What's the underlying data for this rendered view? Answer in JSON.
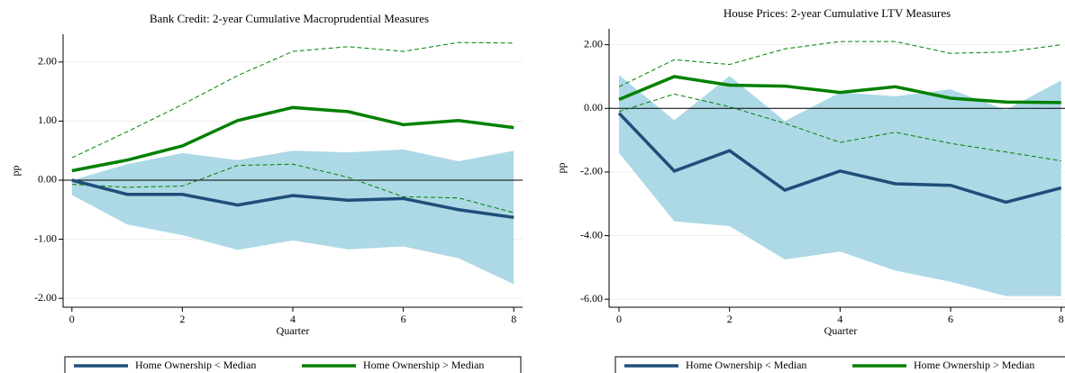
{
  "chart_data": [
    {
      "type": "line",
      "title": "Bank Credit: 2-year Cumulative Macroprudential Measures",
      "xlabel": "Quarter",
      "ylabel": "pp",
      "x": [
        0,
        1,
        2,
        3,
        4,
        5,
        6,
        7,
        8
      ],
      "xlim": [
        -0.16,
        8.16
      ],
      "ylim": [
        -2.15,
        2.47
      ],
      "xticks": [
        0,
        2,
        4,
        6,
        8
      ],
      "yticks": [
        {
          "value": -2,
          "label": "-2.00"
        },
        {
          "value": -1,
          "label": "-1.00"
        },
        {
          "value": 0,
          "label": "0.00"
        },
        {
          "value": 1,
          "label": "1.00"
        },
        {
          "value": 2,
          "label": "2.00"
        }
      ],
      "grid": true,
      "series": [
        {
          "name": "Home Ownership < Median",
          "color": "#1f4e79",
          "ci_style": "band",
          "ci_color": "#add8e6",
          "values": [
            0,
            -0.24,
            -0.24,
            -0.42,
            -0.26,
            -0.34,
            -0.31,
            -0.5,
            -0.63
          ],
          "ci_upper": [
            0,
            0.27,
            0.46,
            0.34,
            0.5,
            0.47,
            0.52,
            0.32,
            0.5
          ],
          "ci_lower": [
            -0.25,
            -0.75,
            -0.93,
            -1.18,
            -1.02,
            -1.17,
            -1.12,
            -1.32,
            -1.76
          ]
        },
        {
          "name": "Home Ownership > Median",
          "color": "#008000",
          "ci_style": "dashed",
          "ci_color": "#008000",
          "values": [
            0.16,
            0.34,
            0.58,
            1.01,
            1.23,
            1.16,
            0.94,
            1.01,
            0.89
          ],
          "ci_upper": [
            0.38,
            0.82,
            1.28,
            1.77,
            2.18,
            2.26,
            2.18,
            2.33,
            2.32
          ],
          "ci_lower": [
            -0.07,
            -0.12,
            -0.1,
            0.25,
            0.27,
            0.05,
            -0.28,
            -0.3,
            -0.55
          ]
        }
      ]
    },
    {
      "type": "line",
      "title": "House Prices: 2-year Cumulative LTV Measures",
      "xlabel": "Quarter",
      "ylabel": "pp",
      "x": [
        0,
        1,
        2,
        3,
        4,
        5,
        6,
        7,
        8
      ],
      "xlim": [
        -0.18,
        8.2
      ],
      "ylim": [
        -6.25,
        2.5
      ],
      "xticks": [
        0,
        2,
        4,
        6,
        8
      ],
      "yticks": [
        {
          "value": -6,
          "label": "-6.00"
        },
        {
          "value": -4,
          "label": "-4.00"
        },
        {
          "value": -2,
          "label": "-2.00"
        },
        {
          "value": 0,
          "label": "0.00"
        },
        {
          "value": 2,
          "label": "2.00"
        }
      ],
      "grid": true,
      "series": [
        {
          "name": "Home Ownership < Median",
          "color": "#1f4e79",
          "ci_style": "band",
          "ci_color": "#add8e6",
          "values": [
            -0.15,
            -1.97,
            -1.33,
            -2.57,
            -1.97,
            -2.37,
            -2.42,
            -2.95,
            -2.5
          ],
          "ci_upper": [
            1.05,
            -0.37,
            1.02,
            -0.4,
            0.5,
            0.38,
            0.6,
            -0.05,
            0.88
          ],
          "ci_lower": [
            -1.4,
            -3.55,
            -3.7,
            -4.75,
            -4.5,
            -5.1,
            -5.45,
            -5.9,
            -5.9
          ]
        },
        {
          "name": "Home Ownership > Median",
          "color": "#008000",
          "ci_style": "dashed",
          "ci_color": "#008000",
          "values": [
            0.28,
            1.0,
            0.73,
            0.7,
            0.5,
            0.68,
            0.32,
            0.2,
            0.18
          ],
          "ci_upper": [
            0.68,
            1.53,
            1.38,
            1.87,
            2.1,
            2.1,
            1.73,
            1.77,
            2.0
          ],
          "ci_lower": [
            -0.1,
            0.45,
            0.05,
            -0.47,
            -1.07,
            -0.75,
            -1.1,
            -1.37,
            -1.65
          ]
        }
      ]
    }
  ]
}
